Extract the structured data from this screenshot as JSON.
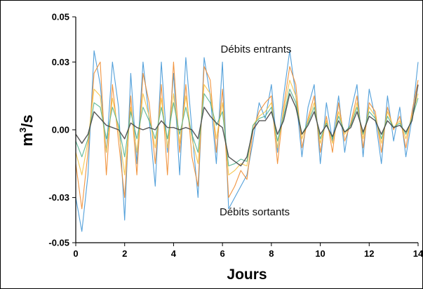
{
  "chart_data": {
    "type": "line",
    "xlabel": "Jours",
    "ylabel": "m3/s",
    "ylabel_base": "m",
    "ylabel_sup": "3",
    "ylabel_rest": "/s",
    "xlim": [
      0,
      14
    ],
    "ylim": [
      -0.05,
      0.05
    ],
    "grid": false,
    "x_ticks": [
      0,
      2,
      4,
      6,
      8,
      10,
      12,
      14
    ],
    "x_tick_labels": [
      "0",
      "2",
      "4",
      "6",
      "8",
      "10",
      "12",
      "14"
    ],
    "y_ticks": [
      0.05,
      0.03,
      0.0,
      -0.03,
      -0.05
    ],
    "y_tick_labels": [
      "0.05",
      "0.03",
      "0.00",
      "-0.03",
      "-0.05"
    ],
    "annotations": [
      {
        "text": "Débits entrants",
        "x": 7.5,
        "y": 0.042
      },
      {
        "text": "Débits sortants",
        "x": 6.5,
        "y": -0.042
      }
    ],
    "colors": [
      "#4a9bd8",
      "#f08a2c",
      "#f5c342",
      "#4fb08c",
      "#7d6bb3",
      "#444444",
      "#6b8f6b"
    ],
    "series": [
      {
        "color": "#4a9bd8",
        "x": [
          0,
          0.25,
          0.5,
          0.75,
          1,
          1.25,
          1.5,
          1.75,
          2,
          2.25,
          2.5,
          2.75,
          3,
          3.25,
          3.5,
          3.75,
          4,
          4.25,
          4.5,
          4.75,
          5,
          5.25,
          5.5,
          5.75,
          6,
          6.25,
          6.5,
          6.75,
          7,
          7.25,
          7.5,
          7.75,
          8,
          8.25,
          8.5,
          8.75,
          9,
          9.25,
          9.5,
          9.75,
          10,
          10.25,
          10.5,
          10.75,
          11,
          11.25,
          11.5,
          11.75,
          12,
          12.25,
          12.5,
          12.75,
          13,
          13.25,
          13.5,
          13.75,
          14
        ],
        "y": [
          -0.03,
          -0.045,
          -0.02,
          0.035,
          0.02,
          -0.01,
          0.03,
          0.01,
          -0.04,
          0.025,
          -0.015,
          0.03,
          0.005,
          -0.025,
          0.03,
          -0.01,
          0.025,
          -0.02,
          0.032,
          0.0,
          -0.03,
          0.032,
          0.015,
          -0.015,
          0.03,
          -0.035,
          -0.03,
          -0.025,
          -0.02,
          -0.005,
          0.012,
          0.005,
          0.02,
          -0.01,
          0.015,
          0.035,
          0.015,
          -0.012,
          0.01,
          0.02,
          -0.015,
          0.012,
          -0.005,
          0.015,
          -0.01,
          0.008,
          0.02,
          -0.012,
          0.018,
          0.005,
          -0.015,
          0.015,
          -0.005,
          0.01,
          -0.012,
          0.005,
          0.03
        ]
      },
      {
        "color": "#f08a2c",
        "x": [
          0,
          0.25,
          0.5,
          0.75,
          1,
          1.25,
          1.5,
          1.75,
          2,
          2.25,
          2.5,
          2.75,
          3,
          3.25,
          3.5,
          3.75,
          4,
          4.25,
          4.5,
          4.75,
          5,
          5.25,
          5.5,
          5.75,
          6,
          6.25,
          6.5,
          6.75,
          7,
          7.25,
          7.5,
          7.75,
          8,
          8.25,
          8.5,
          8.75,
          9,
          9.25,
          9.5,
          9.75,
          10,
          10.25,
          10.5,
          10.75,
          11,
          11.25,
          11.5,
          11.75,
          12,
          12.25,
          12.5,
          12.75,
          13,
          13.25,
          13.5,
          13.75,
          14
        ],
        "y": [
          -0.015,
          -0.035,
          -0.01,
          0.025,
          0.03,
          -0.02,
          0.02,
          -0.005,
          -0.03,
          0.015,
          -0.02,
          0.025,
          0.012,
          -0.015,
          0.02,
          -0.02,
          0.03,
          -0.01,
          0.02,
          -0.012,
          -0.025,
          0.028,
          0.022,
          -0.01,
          0.018,
          -0.03,
          -0.025,
          -0.018,
          -0.022,
          0.0,
          0.008,
          0.012,
          0.015,
          -0.015,
          0.01,
          0.028,
          0.02,
          -0.008,
          0.005,
          0.015,
          -0.01,
          0.006,
          -0.01,
          0.012,
          -0.005,
          0.003,
          0.015,
          -0.008,
          0.012,
          0.008,
          -0.01,
          0.01,
          0.0,
          0.006,
          -0.008,
          0.008,
          0.022
        ]
      },
      {
        "color": "#f5c342",
        "x": [
          0,
          0.25,
          0.5,
          0.75,
          1,
          1.25,
          1.5,
          1.75,
          2,
          2.25,
          2.5,
          2.75,
          3,
          3.25,
          3.5,
          3.75,
          4,
          4.25,
          4.5,
          4.75,
          5,
          5.25,
          5.5,
          5.75,
          6,
          6.25,
          6.5,
          6.75,
          7,
          7.25,
          7.5,
          7.75,
          8,
          8.25,
          8.5,
          8.75,
          9,
          9.25,
          9.5,
          9.75,
          10,
          10.25,
          10.5,
          10.75,
          11,
          11.25,
          11.5,
          11.75,
          12,
          12.25,
          12.5,
          12.75,
          13,
          13.25,
          13.5,
          13.75,
          14
        ],
        "y": [
          -0.01,
          -0.02,
          -0.005,
          0.018,
          0.015,
          -0.01,
          0.014,
          0.0,
          -0.02,
          0.01,
          -0.01,
          0.016,
          0.006,
          -0.008,
          0.014,
          -0.008,
          0.016,
          -0.006,
          0.015,
          -0.004,
          -0.015,
          0.02,
          0.016,
          -0.004,
          0.012,
          -0.02,
          -0.018,
          -0.015,
          -0.016,
          0.002,
          0.006,
          0.008,
          0.012,
          -0.008,
          0.008,
          0.022,
          0.015,
          -0.004,
          0.004,
          0.012,
          -0.006,
          0.004,
          -0.006,
          0.008,
          -0.002,
          0.002,
          0.012,
          -0.004,
          0.01,
          0.006,
          -0.006,
          0.008,
          0.001,
          0.004,
          -0.004,
          0.006,
          0.016
        ]
      },
      {
        "color": "#4fb08c",
        "x": [
          0,
          0.25,
          0.5,
          0.75,
          1,
          1.25,
          1.5,
          1.75,
          2,
          2.25,
          2.5,
          2.75,
          3,
          3.25,
          3.5,
          3.75,
          4,
          4.25,
          4.5,
          4.75,
          5,
          5.25,
          5.5,
          5.75,
          6,
          6.25,
          6.5,
          6.75,
          7,
          7.25,
          7.5,
          7.75,
          8,
          8.25,
          8.5,
          8.75,
          9,
          9.25,
          9.5,
          9.75,
          10,
          10.25,
          10.5,
          10.75,
          11,
          11.25,
          11.5,
          11.75,
          12,
          12.25,
          12.5,
          12.75,
          13,
          13.25,
          13.5,
          13.75,
          14
        ],
        "y": [
          -0.005,
          -0.012,
          -0.004,
          0.012,
          0.01,
          -0.004,
          0.01,
          0.002,
          -0.012,
          0.008,
          -0.004,
          0.01,
          0.004,
          -0.004,
          0.01,
          -0.004,
          0.012,
          -0.002,
          0.01,
          -0.002,
          -0.01,
          0.016,
          0.012,
          0.002,
          0.008,
          -0.016,
          -0.015,
          -0.013,
          -0.014,
          0.002,
          0.005,
          0.006,
          0.01,
          -0.005,
          0.006,
          0.018,
          0.012,
          -0.002,
          0.003,
          0.01,
          -0.004,
          0.003,
          -0.004,
          0.006,
          -0.001,
          0.002,
          0.01,
          -0.002,
          0.008,
          0.005,
          -0.004,
          0.006,
          0.001,
          0.003,
          -0.002,
          0.005,
          0.014
        ]
      },
      {
        "color": "#444444",
        "x": [
          0,
          0.25,
          0.5,
          0.75,
          1,
          1.25,
          1.5,
          1.75,
          2,
          2.25,
          2.5,
          2.75,
          3,
          3.25,
          3.5,
          3.75,
          4,
          4.25,
          4.5,
          4.75,
          5,
          5.25,
          5.5,
          5.75,
          6,
          6.25,
          6.5,
          6.75,
          7,
          7.25,
          7.5,
          7.75,
          8,
          8.25,
          8.5,
          8.75,
          9,
          9.25,
          9.5,
          9.75,
          10,
          10.25,
          10.5,
          10.75,
          11,
          11.25,
          11.5,
          11.75,
          12,
          12.25,
          12.5,
          12.75,
          13,
          13.25,
          13.5,
          13.75,
          14
        ],
        "y": [
          -0.002,
          -0.006,
          -0.002,
          0.008,
          0.005,
          0.002,
          0.001,
          0.0,
          -0.004,
          0.003,
          0.001,
          0.0,
          0.001,
          0.0,
          0.004,
          0.001,
          0.001,
          0.0,
          0.001,
          0.0,
          -0.004,
          0.01,
          0.006,
          0.003,
          0.001,
          -0.012,
          -0.014,
          -0.016,
          -0.012,
          0.0,
          0.004,
          0.004,
          0.008,
          -0.002,
          0.004,
          0.016,
          0.01,
          -0.002,
          0.002,
          0.008,
          -0.002,
          0.002,
          -0.003,
          0.004,
          -0.001,
          0.001,
          0.008,
          -0.001,
          0.006,
          0.004,
          -0.002,
          0.004,
          0.001,
          0.002,
          -0.001,
          0.004,
          0.02
        ]
      }
    ]
  }
}
